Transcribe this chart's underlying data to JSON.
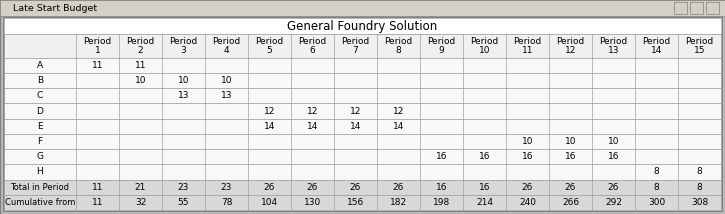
{
  "title": "General Foundry Solution",
  "window_title": "Late Start Budget",
  "row_labels": [
    "A",
    "B",
    "C",
    "D",
    "E",
    "F",
    "G",
    "H",
    "Total in Period",
    "Cumulative from"
  ],
  "table_data": [
    [
      "11",
      "11",
      "",
      "",
      "",
      "",
      "",
      "",
      "",
      "",
      "",
      "",
      "",
      "",
      ""
    ],
    [
      "",
      "10",
      "10",
      "10",
      "",
      "",
      "",
      "",
      "",
      "",
      "",
      "",
      "",
      "",
      ""
    ],
    [
      "",
      "",
      "13",
      "13",
      "",
      "",
      "",
      "",
      "",
      "",
      "",
      "",
      "",
      "",
      ""
    ],
    [
      "",
      "",
      "",
      "",
      "12",
      "12",
      "12",
      "12",
      "",
      "",
      "",
      "",
      "",
      "",
      ""
    ],
    [
      "",
      "",
      "",
      "",
      "14",
      "14",
      "14",
      "14",
      "",
      "",
      "",
      "",
      "",
      "",
      ""
    ],
    [
      "",
      "",
      "",
      "",
      "",
      "",
      "",
      "",
      "",
      "",
      "10",
      "10",
      "10",
      "",
      ""
    ],
    [
      "",
      "",
      "",
      "",
      "",
      "",
      "",
      "",
      "16",
      "16",
      "16",
      "16",
      "16",
      "",
      ""
    ],
    [
      "",
      "",
      "",
      "",
      "",
      "",
      "",
      "",
      "",
      "",
      "",
      "",
      "",
      "8",
      "8"
    ],
    [
      "11",
      "21",
      "23",
      "23",
      "26",
      "26",
      "26",
      "26",
      "16",
      "16",
      "26",
      "26",
      "26",
      "8",
      "8"
    ],
    [
      "11",
      "32",
      "55",
      "78",
      "104",
      "130",
      "156",
      "182",
      "198",
      "214",
      "240",
      "266",
      "292",
      "300",
      "308"
    ]
  ],
  "font_size": 6.5,
  "header_font_size": 6.5,
  "title_font_size": 8.5
}
